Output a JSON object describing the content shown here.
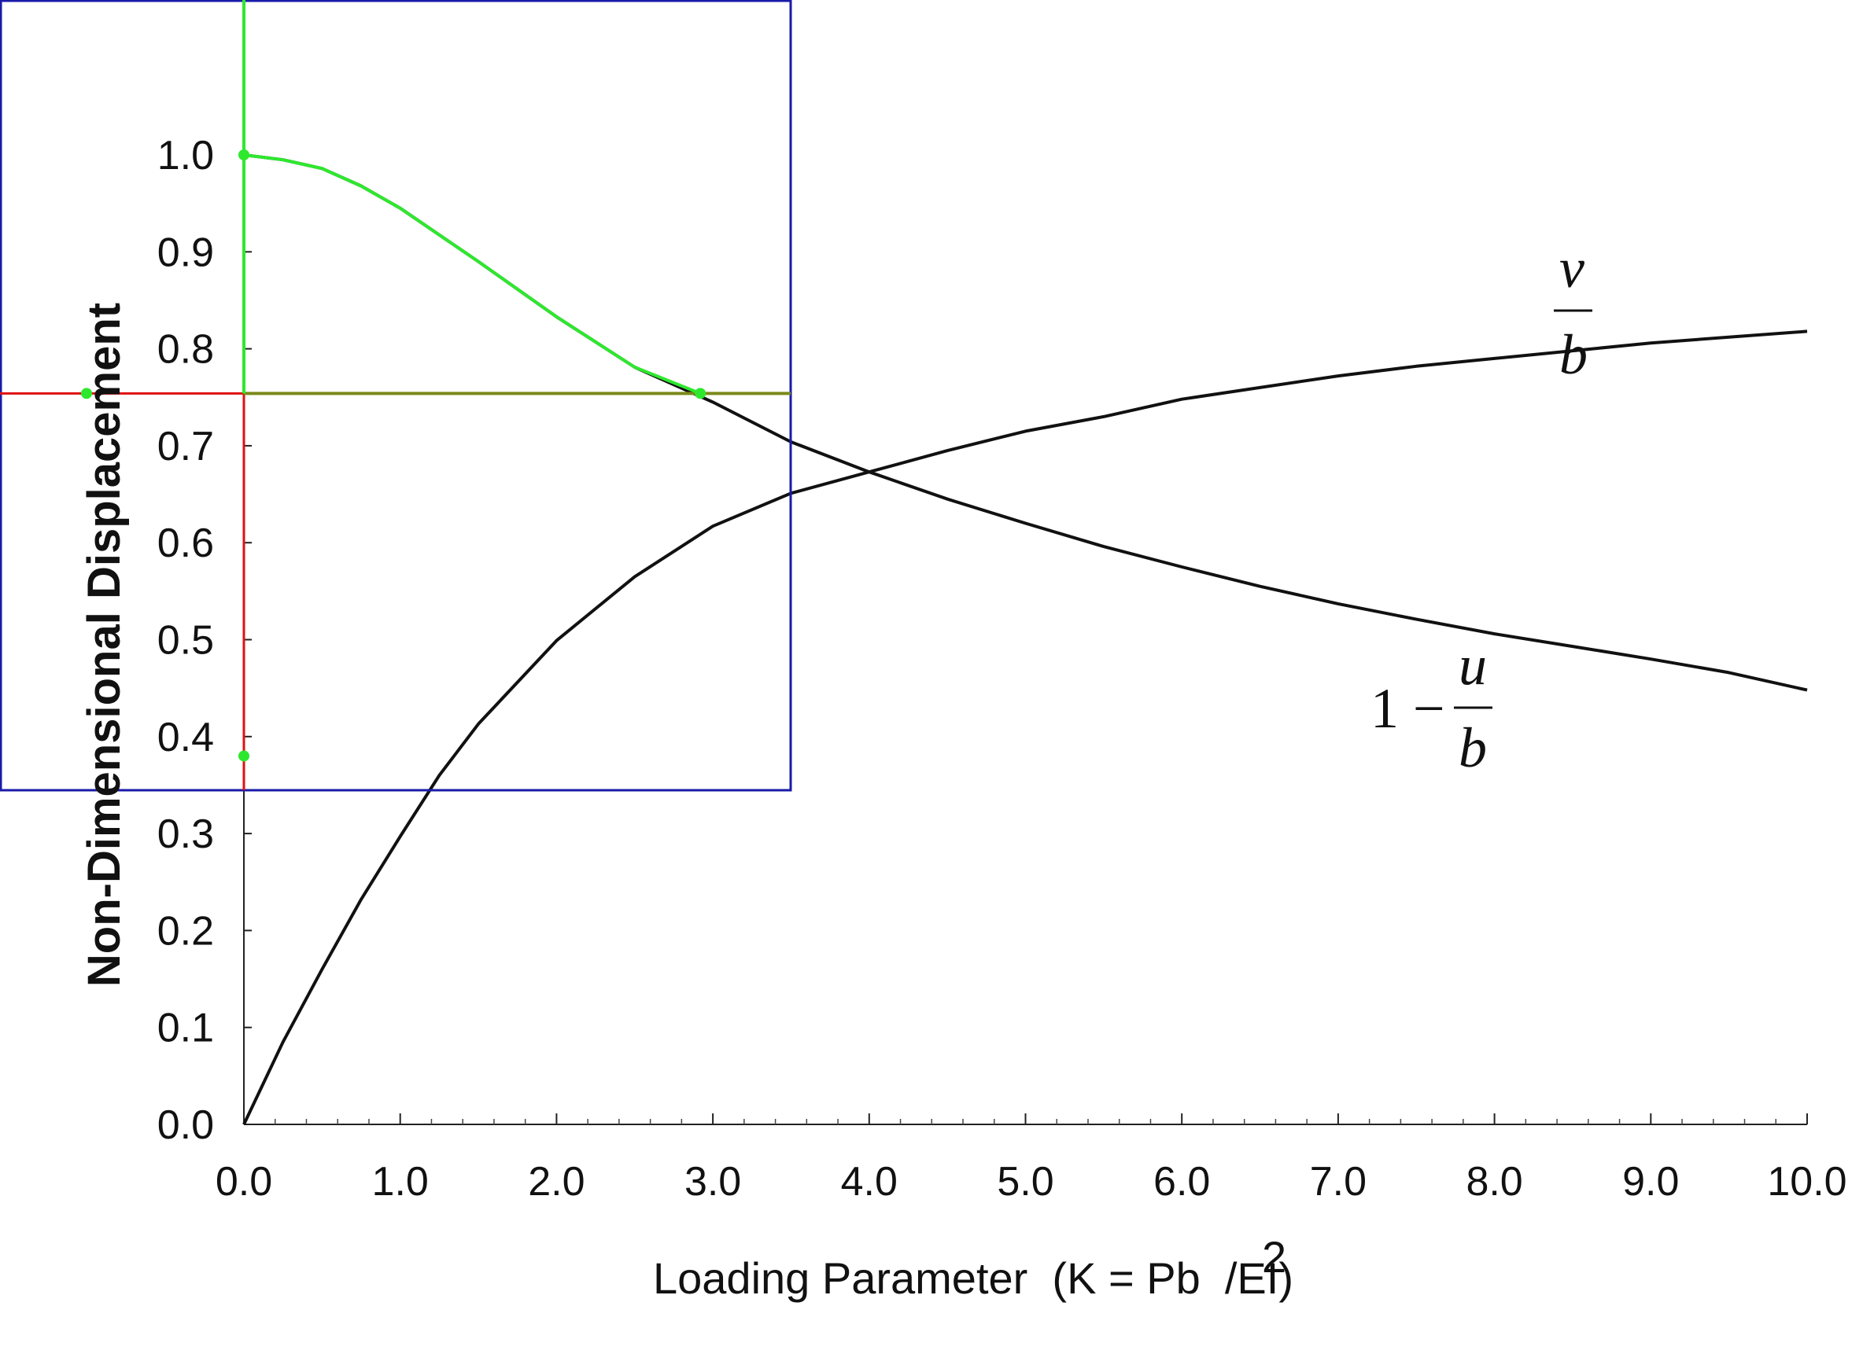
{
  "chart_data": {
    "type": "line",
    "xlabel": "Loading Parameter  (K = Pb  /EI)",
    "xlabel_superscript": "2",
    "ylabel": "Non-Dimensional Displacement",
    "xlim": [
      0,
      10
    ],
    "ylim": [
      0,
      1.0
    ],
    "x_ticks": [
      "0.0",
      "1.0",
      "2.0",
      "3.0",
      "4.0",
      "5.0",
      "6.0",
      "7.0",
      "8.0",
      "9.0",
      "10.0"
    ],
    "y_ticks": [
      "0.0",
      "0.1",
      "0.2",
      "0.3",
      "0.4",
      "0.5",
      "0.6",
      "0.7",
      "0.8",
      "0.9",
      "1.0"
    ],
    "grid": false,
    "series": [
      {
        "label_main": "v",
        "label_denominator": "b",
        "color": "#111111",
        "x": [
          0,
          0.25,
          0.5,
          0.75,
          1.0,
          1.25,
          1.5,
          2.0,
          2.5,
          3.0,
          3.5,
          4.0,
          4.5,
          5.0,
          5.5,
          6.0,
          6.5,
          7.0,
          7.5,
          8.0,
          8.5,
          9.0,
          9.5,
          10.0
        ],
        "y": [
          0.0,
          0.085,
          0.16,
          0.232,
          0.297,
          0.36,
          0.413,
          0.499,
          0.565,
          0.617,
          0.651,
          0.673,
          0.695,
          0.715,
          0.73,
          0.748,
          0.76,
          0.772,
          0.782,
          0.79,
          0.798,
          0.806,
          0.812,
          0.818
        ]
      },
      {
        "label_prefix": "1 −",
        "label_main": "u",
        "label_denominator": "b",
        "color": "#111111",
        "x": [
          0,
          0.25,
          0.5,
          0.75,
          1.0,
          1.5,
          2.0,
          2.5,
          3.0,
          3.5,
          4.0,
          4.5,
          5.0,
          5.5,
          6.0,
          6.5,
          7.0,
          7.5,
          8.0,
          8.5,
          9.0,
          9.5,
          10.0
        ],
        "y": [
          1.0,
          0.995,
          0.986,
          0.968,
          0.945,
          0.89,
          0.833,
          0.781,
          0.745,
          0.704,
          0.673,
          0.645,
          0.62,
          0.596,
          0.575,
          0.555,
          0.537,
          0.521,
          0.506,
          0.493,
          0.48,
          0.466,
          0.448
        ]
      }
    ],
    "overlay": {
      "box_color": "#1a1aa8",
      "trace_color": "#2ee82e",
      "line_color": "#e01010",
      "olive_color": "#7a8a1a",
      "trace_x": [
        0,
        0.25,
        0.5,
        0.75,
        1.0,
        1.5,
        2.0,
        2.5,
        2.92
      ],
      "trace_y": [
        1.0,
        0.995,
        0.986,
        0.968,
        0.945,
        0.89,
        0.833,
        0.781,
        0.754
      ],
      "level_y": 0.754,
      "marker_points": [
        {
          "x": 0,
          "y": 1.0
        },
        {
          "x": 2.92,
          "y": 0.754
        },
        {
          "x": -1.0,
          "y": 0.754
        },
        {
          "x": 0,
          "y": 0.38
        }
      ]
    }
  }
}
